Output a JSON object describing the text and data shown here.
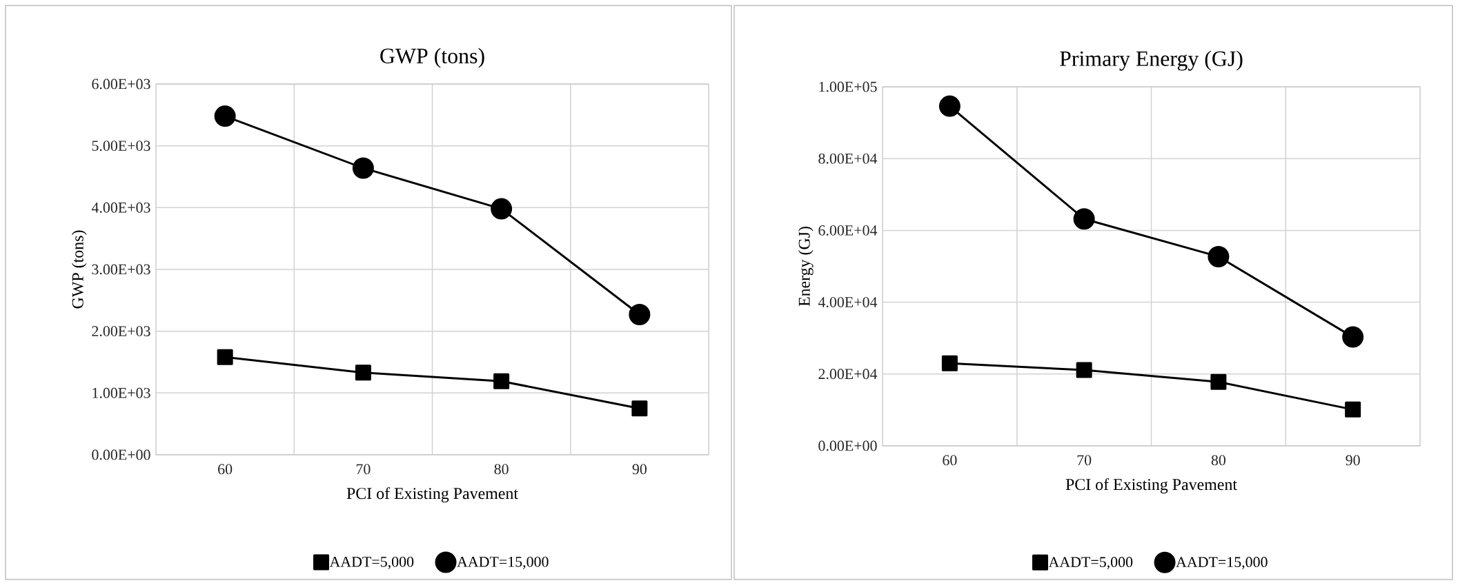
{
  "chart_data": [
    {
      "type": "line",
      "title": "GWP (tons)",
      "xlabel": "PCI of Existing Pavement",
      "ylabel": "GWP (tons)",
      "categories": [
        "60",
        "70",
        "80",
        "90"
      ],
      "series": [
        {
          "name": "AADT=5,000",
          "color": "#000000",
          "marker": "square",
          "values": [
            1580,
            1330,
            1190,
            750
          ]
        },
        {
          "name": "AADT=15,000",
          "color": "#000000",
          "marker": "circle",
          "values": [
            5480,
            4640,
            3980,
            2270
          ]
        }
      ],
      "ylim": [
        0,
        6000
      ],
      "yticks": [
        {
          "value": 0,
          "label": "0.00E+00"
        },
        {
          "value": 1000,
          "label": "1.00E+03"
        },
        {
          "value": 2000,
          "label": "2.00E+03"
        },
        {
          "value": 3000,
          "label": "3.00E+03"
        },
        {
          "value": 4000,
          "label": "4.00E+03"
        },
        {
          "value": 5000,
          "label": "5.00E+03"
        },
        {
          "value": 6000,
          "label": "6.00E+03"
        }
      ],
      "grid": true,
      "legend": "bottom",
      "line_style": "solid"
    },
    {
      "type": "line",
      "title": "Primary  Energy  (GJ)",
      "xlabel": "PCI of Existing Pavement",
      "ylabel": "Energy (GJ)",
      "categories": [
        "60",
        "70",
        "80",
        "90"
      ],
      "series": [
        {
          "name": "AADT=5,000",
          "color": "#000000",
          "marker": "square",
          "values": [
            23000,
            21100,
            17800,
            10100
          ]
        },
        {
          "name": "AADT=15,000",
          "color": "#000000",
          "marker": "circle",
          "values": [
            94600,
            63200,
            52700,
            30300
          ]
        }
      ],
      "ylim": [
        0,
        100000
      ],
      "yticks": [
        {
          "value": 0,
          "label": "0.00E+00"
        },
        {
          "value": 20000,
          "label": "2.00E+04"
        },
        {
          "value": 40000,
          "label": "4.00E+04"
        },
        {
          "value": 60000,
          "label": "6.00E+04"
        },
        {
          "value": 80000,
          "label": "8.00E+04"
        },
        {
          "value": 100000,
          "label": "1.00E+05"
        }
      ],
      "grid": true,
      "legend": "bottom",
      "line_style": "solid"
    }
  ]
}
